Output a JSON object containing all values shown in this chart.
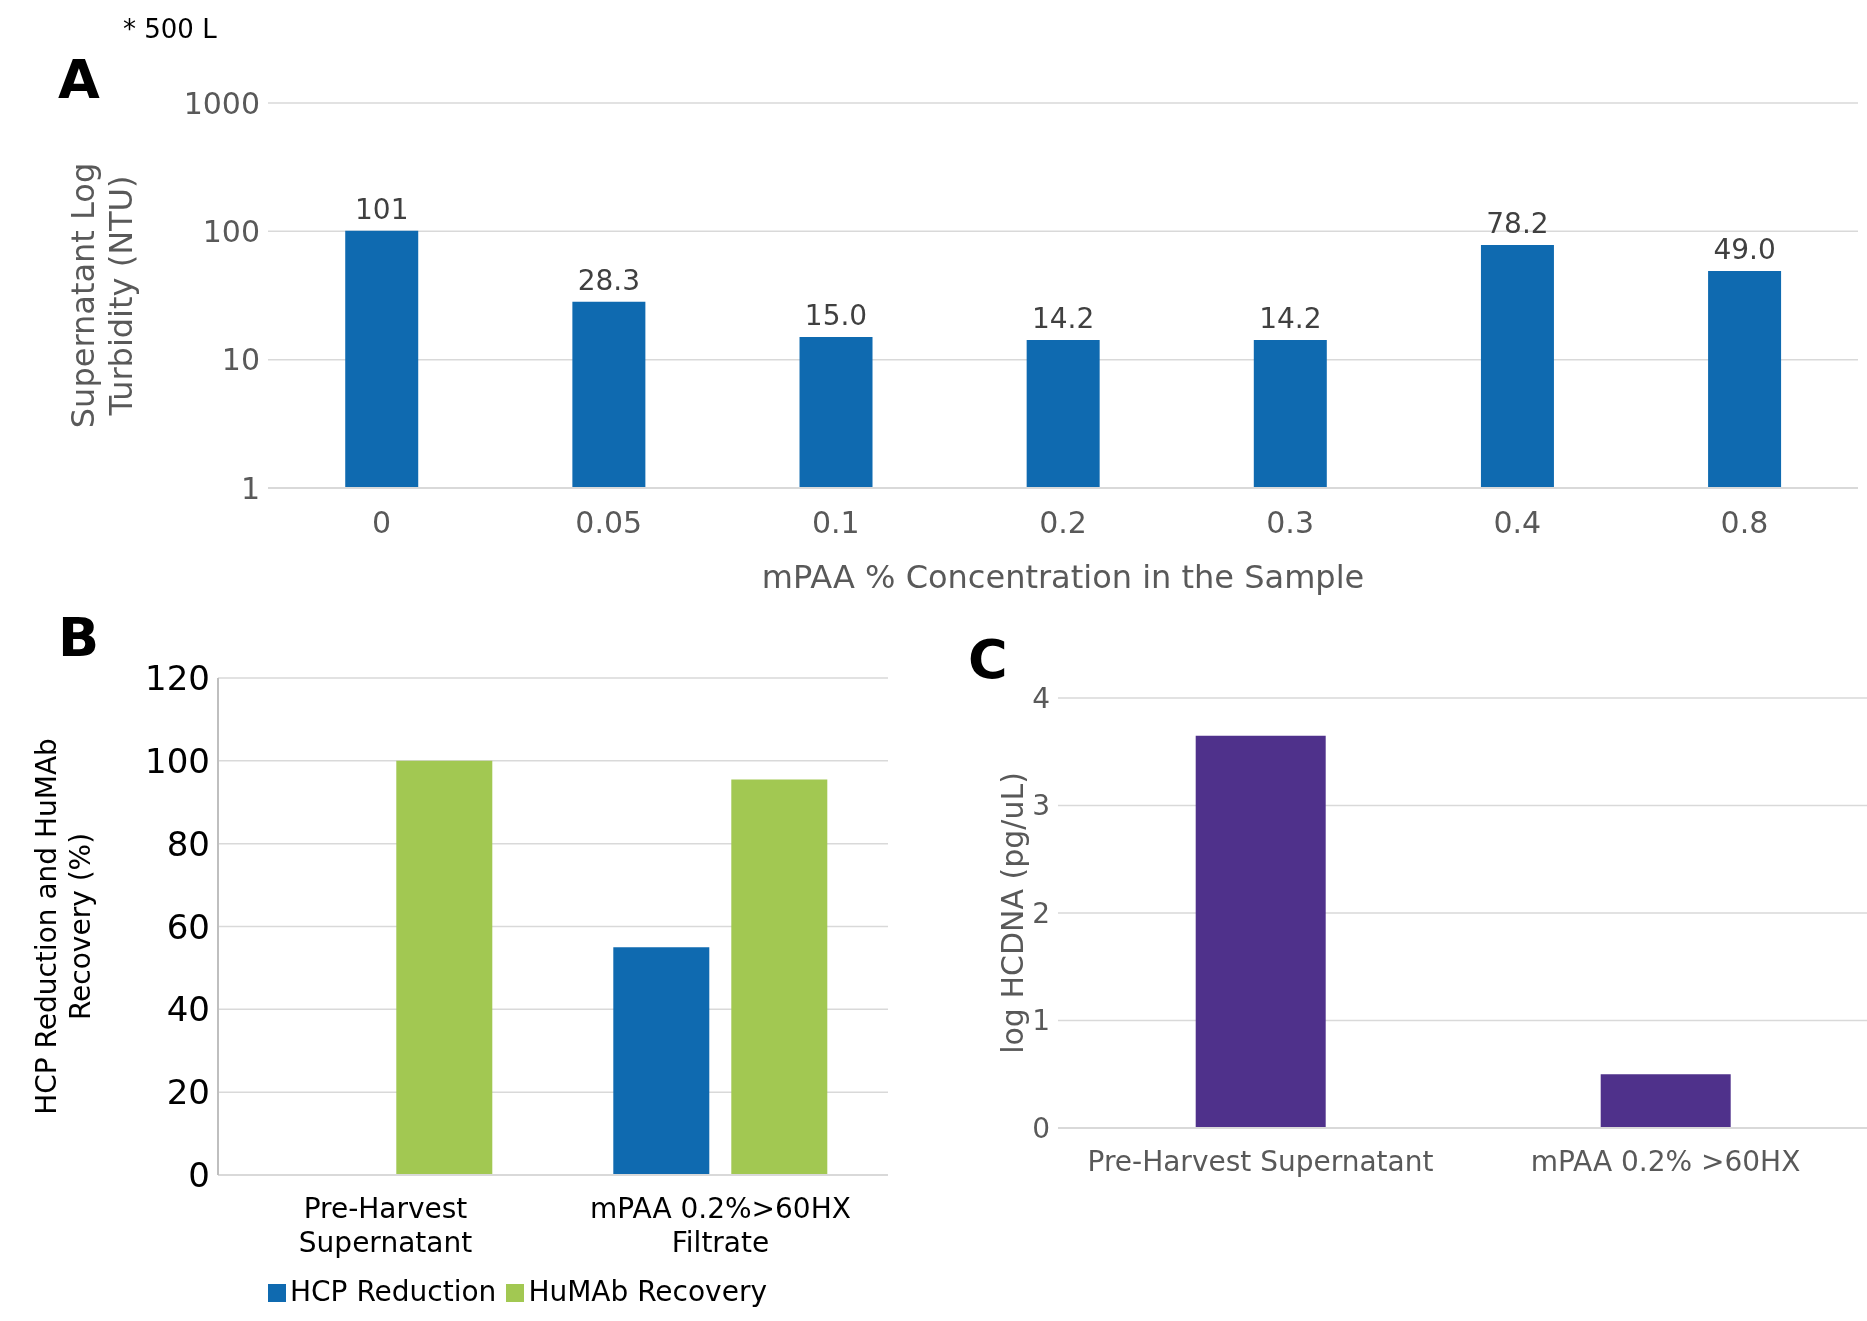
{
  "chart_data": [
    {
      "type": "bar",
      "title": "A",
      "annotations": [
        "* 500 L"
      ],
      "xlabel": "mPAA % Concentration in the Sample",
      "ylabel": "Supernatant Log Turbidity  (NTU)",
      "categories": [
        "0",
        "0.05",
        "0.1",
        "0.2",
        "0.3",
        "0.4",
        "0.8"
      ],
      "values": [
        101,
        28.3,
        15.0,
        14.2,
        14.2,
        78.2,
        49.0
      ],
      "value_labels": [
        "101",
        "28.3",
        "15.0",
        "14.2",
        "14.2",
        "78.2",
        "49.0"
      ],
      "color": "#0f6ab0",
      "log": true,
      "ylim": [
        1,
        1000
      ],
      "yticks": [
        1,
        10,
        100,
        1000
      ],
      "grid": "y"
    },
    {
      "type": "bar",
      "title": "B",
      "ylabel": "HCP Reduction and HuMAb Recovery (%)",
      "categories": [
        "Pre-Harvest Supernatant",
        "mPAA 0.2%>60HX Filtrate"
      ],
      "series": [
        {
          "name": "HCP Reduction",
          "color": "#0f6ab0",
          "values": [
            null,
            55
          ]
        },
        {
          "name": "HuMAb Recovery",
          "color": "#a2c852",
          "values": [
            100,
            95.5
          ]
        }
      ],
      "ylim": [
        0,
        120
      ],
      "yticks": [
        0,
        20,
        40,
        60,
        80,
        100,
        120
      ],
      "grid": "y",
      "legend": "bottom left"
    },
    {
      "type": "bar",
      "title": "C",
      "ylabel": "log HCDNA (pg/uL)",
      "categories": [
        "Pre-Harvest Supernatant",
        "mPAA 0.2% >60HX"
      ],
      "values": [
        3.65,
        0.5
      ],
      "color": "#4f318b",
      "ylim": [
        0,
        4
      ],
      "yticks": [
        0,
        1,
        2,
        3,
        4
      ],
      "grid": "y"
    }
  ]
}
